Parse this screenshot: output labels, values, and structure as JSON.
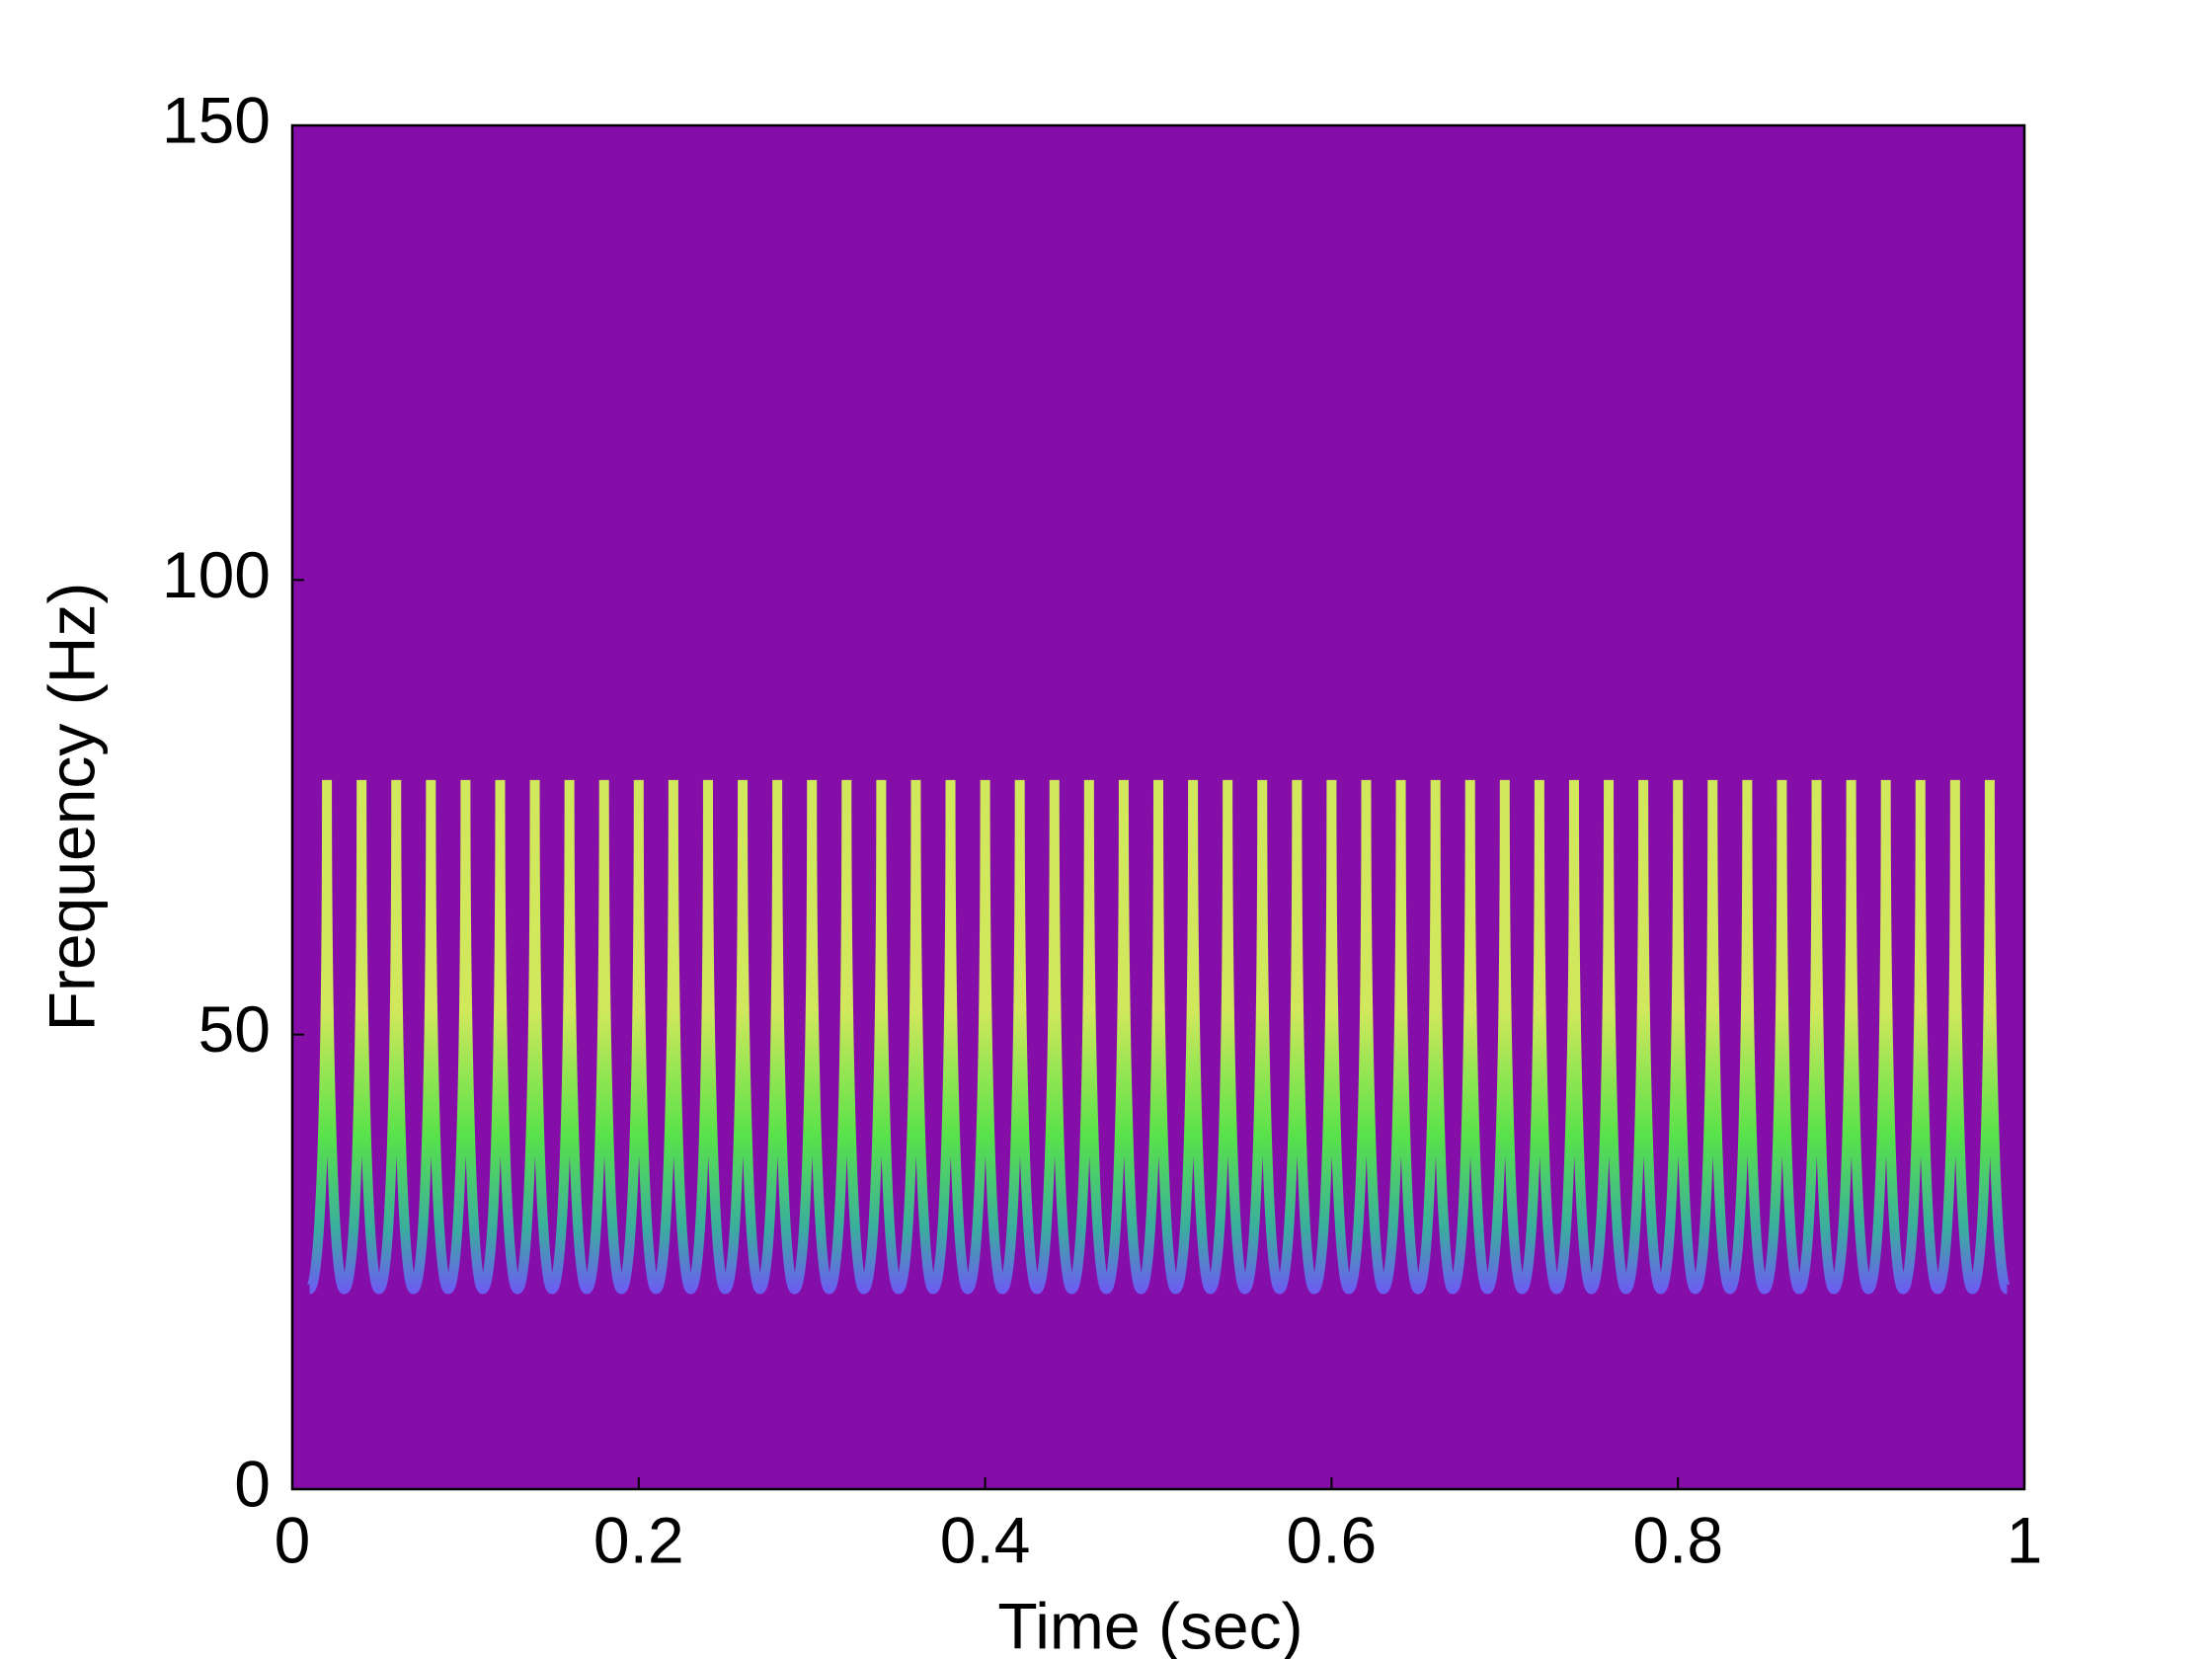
{
  "chart_data": {
    "type": "spectrogram",
    "xlabel": "Time (sec)",
    "ylabel": "Frequency (Hz)",
    "xlim": [
      0,
      1
    ],
    "ylim": [
      0,
      150
    ],
    "xticks": [
      0,
      0.2,
      0.4,
      0.6,
      0.8,
      1
    ],
    "yticks": [
      0,
      50,
      100,
      150
    ],
    "background": "#850ea8",
    "colormap": [
      "#6b5ff0",
      "#3aae9e",
      "#58e24a",
      "#d2e85c"
    ],
    "x": [
      0.01,
      0.02,
      0.03,
      0.04,
      0.05,
      0.06,
      0.07,
      0.08,
      0.09,
      0.1,
      0.11,
      0.12,
      0.13,
      0.14,
      0.15,
      0.16,
      0.17,
      0.18,
      0.19,
      0.2,
      0.21,
      0.22,
      0.23,
      0.24,
      0.25,
      0.26,
      0.27,
      0.28,
      0.29,
      0.3,
      0.31,
      0.32,
      0.33,
      0.34,
      0.35,
      0.36,
      0.37,
      0.38,
      0.39,
      0.4,
      0.41,
      0.42,
      0.43,
      0.44,
      0.45,
      0.46,
      0.47,
      0.48,
      0.49,
      0.5,
      0.51,
      0.52,
      0.53,
      0.54,
      0.55,
      0.56,
      0.57,
      0.58,
      0.59,
      0.6,
      0.61,
      0.62,
      0.63,
      0.64,
      0.65,
      0.66,
      0.67,
      0.68,
      0.69,
      0.7,
      0.71,
      0.72,
      0.73,
      0.74,
      0.75,
      0.76,
      0.77,
      0.78,
      0.79,
      0.8,
      0.81,
      0.82,
      0.83,
      0.84,
      0.85,
      0.86,
      0.87,
      0.88,
      0.89,
      0.9,
      0.91,
      0.92,
      0.93,
      0.94,
      0.95,
      0.96,
      0.97,
      0.98,
      0.99
    ],
    "values": [
      22,
      78,
      22,
      78,
      22,
      78,
      22,
      78,
      22,
      78,
      22,
      78,
      22,
      78,
      22,
      78,
      22,
      78,
      22,
      78,
      22,
      78,
      22,
      78,
      22,
      78,
      22,
      78,
      22,
      78,
      22,
      78,
      22,
      78,
      22,
      78,
      22,
      78,
      22,
      78,
      22,
      78,
      22,
      78,
      22,
      78,
      22,
      78,
      22,
      78,
      22,
      78,
      22,
      78,
      22,
      78,
      22,
      78,
      22,
      78,
      22,
      78,
      22,
      78,
      22,
      78,
      22,
      78,
      22,
      78,
      22,
      78,
      22,
      78,
      22,
      78,
      22,
      78,
      22,
      78,
      22,
      78,
      22,
      78,
      22,
      78,
      22,
      78,
      22,
      78,
      22,
      78,
      22,
      78,
      22,
      78,
      22,
      78,
      22
    ]
  }
}
